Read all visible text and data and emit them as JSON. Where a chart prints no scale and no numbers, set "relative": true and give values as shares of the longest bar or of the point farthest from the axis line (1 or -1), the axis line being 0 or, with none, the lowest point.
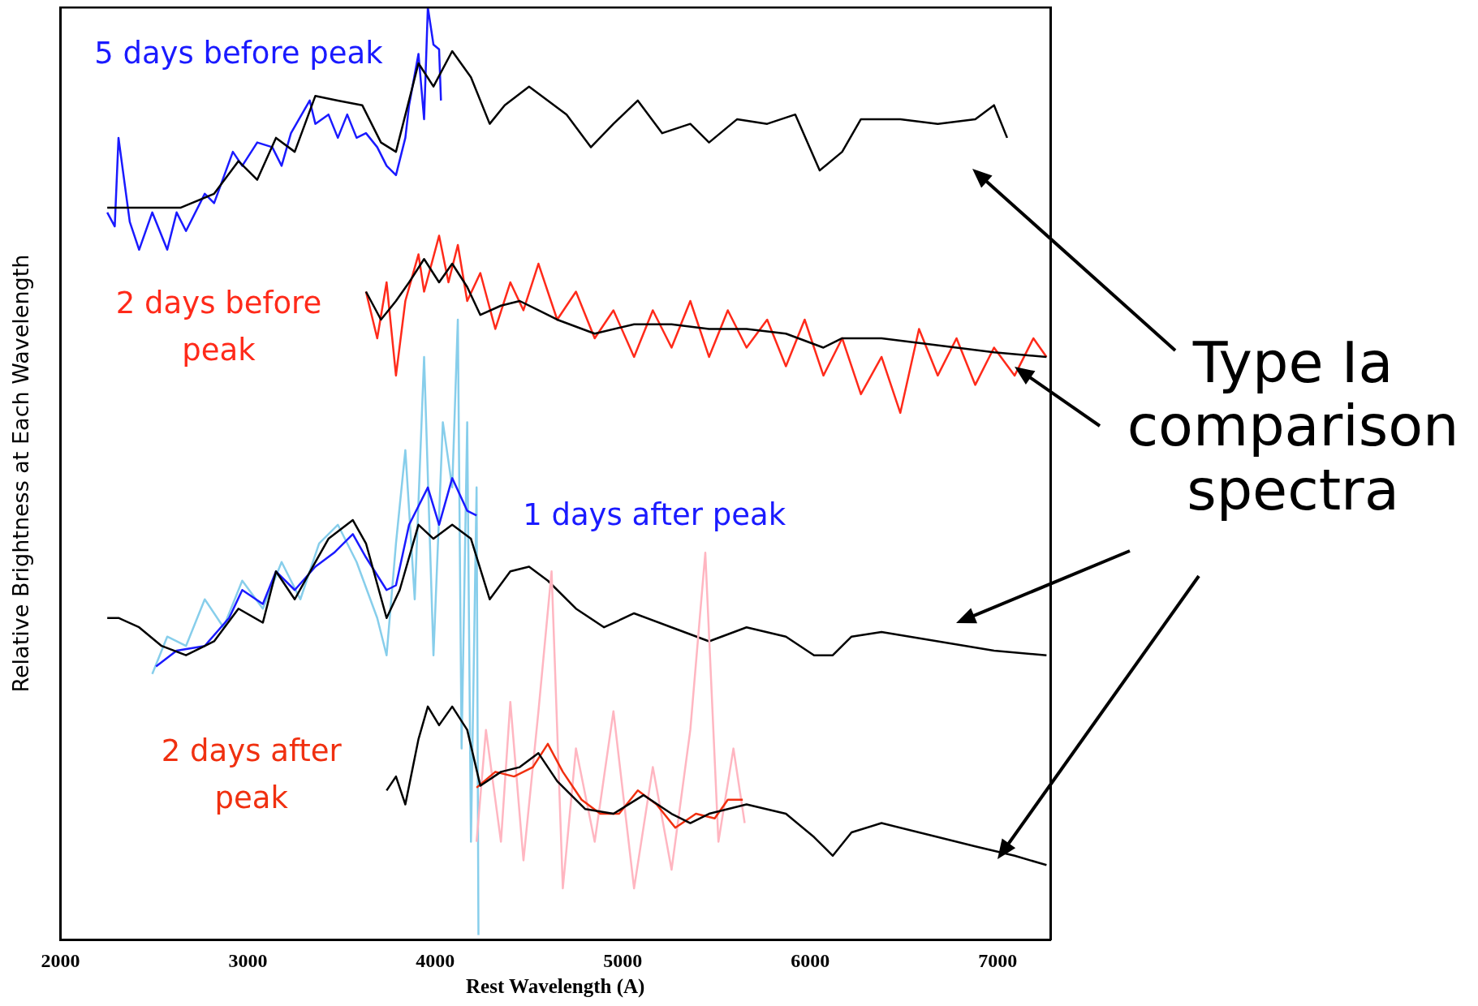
{
  "chart_data": {
    "type": "line",
    "xlabel": "Rest Wavelength (A)",
    "ylabel": "Relative Brightness at Each Wavelength",
    "relative": true,
    "xlim": [
      2000,
      7280
    ],
    "xticks": [
      2000,
      3000,
      4000,
      5000,
      6000,
      7000
    ],
    "grid": false,
    "legend": false,
    "marker": "none",
    "line_style": "solid",
    "annotations": [
      "Type Ia comparison spectra"
    ],
    "series": [
      {
        "name": "5 days before peak",
        "color": "#1a1aff",
        "x": [
          2250,
          2290,
          2310,
          2370,
          2420,
          2490,
          2570,
          2620,
          2670,
          2770,
          2820,
          2920,
          2970,
          3050,
          3130,
          3180,
          3230,
          3330,
          3360,
          3430,
          3480,
          3530,
          3580,
          3630,
          3690,
          3740,
          3790,
          3840,
          3860,
          3910,
          3940,
          3960,
          3990,
          4020,
          4030
        ],
        "values": [
          0.78,
          0.765,
          0.86,
          0.77,
          0.74,
          0.78,
          0.74,
          0.78,
          0.76,
          0.8,
          0.79,
          0.845,
          0.83,
          0.855,
          0.85,
          0.83,
          0.865,
          0.9,
          0.875,
          0.885,
          0.86,
          0.885,
          0.86,
          0.865,
          0.85,
          0.83,
          0.82,
          0.86,
          0.895,
          0.95,
          0.88,
          1.0,
          0.96,
          0.955,
          0.9
        ]
      },
      {
        "color": "#000000",
        "x": [
          2250,
          2640,
          2820,
          2950,
          3050,
          3150,
          3250,
          3360,
          3480,
          3610,
          3710,
          3790,
          3910,
          3990,
          4090,
          4190,
          4290,
          4370,
          4500,
          4600,
          4700,
          4830,
          4950,
          5080,
          5210,
          5360,
          5460,
          5610,
          5770,
          5920,
          6050,
          6170,
          6270,
          6480,
          6680,
          6880,
          6980,
          7050
        ],
        "values": [
          0.785,
          0.785,
          0.8,
          0.835,
          0.815,
          0.86,
          0.845,
          0.905,
          0.9,
          0.895,
          0.855,
          0.845,
          0.94,
          0.915,
          0.953,
          0.925,
          0.875,
          0.895,
          0.915,
          0.9,
          0.885,
          0.85,
          0.875,
          0.9,
          0.865,
          0.875,
          0.855,
          0.88,
          0.875,
          0.885,
          0.825,
          0.845,
          0.88,
          0.88,
          0.875,
          0.88,
          0.895,
          0.86
        ]
      },
      {
        "name": "2 days before peak",
        "color": "#ff2a1a",
        "x": [
          3630,
          3690,
          3740,
          3790,
          3840,
          3910,
          3940,
          4020,
          4070,
          4120,
          4170,
          4240,
          4320,
          4400,
          4470,
          4550,
          4650,
          4750,
          4850,
          4950,
          5060,
          5160,
          5260,
          5360,
          5460,
          5560,
          5660,
          5770,
          5870,
          5970,
          6070,
          6170,
          6270,
          6380,
          6480,
          6580,
          6680,
          6780,
          6880,
          6980,
          7090,
          7190,
          7260
        ],
        "values": [
          0.695,
          0.645,
          0.705,
          0.605,
          0.685,
          0.735,
          0.695,
          0.755,
          0.705,
          0.745,
          0.685,
          0.715,
          0.655,
          0.705,
          0.675,
          0.725,
          0.665,
          0.695,
          0.645,
          0.675,
          0.625,
          0.675,
          0.635,
          0.685,
          0.625,
          0.675,
          0.635,
          0.665,
          0.615,
          0.665,
          0.605,
          0.645,
          0.585,
          0.625,
          0.565,
          0.655,
          0.605,
          0.645,
          0.595,
          0.635,
          0.605,
          0.645,
          0.625
        ]
      },
      {
        "color": "#000000",
        "x": [
          3630,
          3710,
          3790,
          3860,
          3940,
          4020,
          4090,
          4170,
          4240,
          4350,
          4450,
          4550,
          4650,
          4850,
          5060,
          5260,
          5460,
          5660,
          5870,
          6070,
          6170,
          6380,
          6580,
          6780,
          6980,
          7260
        ],
        "values": [
          0.695,
          0.665,
          0.685,
          0.705,
          0.73,
          0.705,
          0.725,
          0.7,
          0.67,
          0.68,
          0.685,
          0.675,
          0.665,
          0.65,
          0.66,
          0.66,
          0.655,
          0.655,
          0.65,
          0.635,
          0.645,
          0.645,
          0.64,
          0.635,
          0.63,
          0.625
        ]
      },
      {
        "color": "#87ceeb",
        "x": [
          2490,
          2570,
          2670,
          2770,
          2870,
          2970,
          3080,
          3180,
          3280,
          3380,
          3480,
          3580,
          3690,
          3740,
          3790,
          3840,
          3890,
          3940,
          3990,
          4040,
          4090,
          4120,
          4140,
          4170,
          4190,
          4220,
          4230
        ],
        "values": [
          0.285,
          0.325,
          0.315,
          0.365,
          0.335,
          0.385,
          0.355,
          0.405,
          0.365,
          0.425,
          0.445,
          0.405,
          0.345,
          0.305,
          0.425,
          0.525,
          0.365,
          0.625,
          0.305,
          0.555,
          0.485,
          0.665,
          0.205,
          0.555,
          0.105,
          0.485,
          0.005
        ]
      },
      {
        "name": "1 days after peak",
        "color": "#1a1aff",
        "x": [
          2510,
          2620,
          2770,
          2900,
          2970,
          3080,
          3150,
          3250,
          3360,
          3460,
          3560,
          3630,
          3740,
          3790,
          3860,
          3960,
          4020,
          4090,
          4170,
          4220
        ],
        "values": [
          0.293,
          0.31,
          0.315,
          0.345,
          0.375,
          0.36,
          0.395,
          0.375,
          0.4,
          0.415,
          0.435,
          0.41,
          0.375,
          0.38,
          0.445,
          0.485,
          0.445,
          0.495,
          0.46,
          0.455
        ]
      },
      {
        "color": "#000000",
        "x": [
          2250,
          2310,
          2420,
          2540,
          2670,
          2820,
          2950,
          3080,
          3150,
          3250,
          3360,
          3430,
          3560,
          3630,
          3740,
          3810,
          3910,
          3990,
          4090,
          4190,
          4290,
          4400,
          4500,
          4600,
          4750,
          4900,
          5060,
          5260,
          5460,
          5660,
          5870,
          6020,
          6120,
          6220,
          6380,
          6680,
          6980,
          7260
        ],
        "values": [
          0.345,
          0.345,
          0.335,
          0.315,
          0.305,
          0.32,
          0.355,
          0.34,
          0.395,
          0.365,
          0.405,
          0.43,
          0.45,
          0.425,
          0.345,
          0.375,
          0.445,
          0.43,
          0.445,
          0.43,
          0.365,
          0.395,
          0.4,
          0.385,
          0.355,
          0.335,
          0.35,
          0.335,
          0.32,
          0.335,
          0.325,
          0.305,
          0.305,
          0.325,
          0.33,
          0.32,
          0.31,
          0.305
        ]
      },
      {
        "color": "#ffb6c1",
        "x": [
          4220,
          4270,
          4350,
          4400,
          4470,
          4550,
          4620,
          4680,
          4750,
          4850,
          4950,
          5060,
          5160,
          5260,
          5360,
          5440,
          5510,
          5590,
          5650
        ],
        "values": [
          0.105,
          0.225,
          0.105,
          0.255,
          0.085,
          0.245,
          0.395,
          0.055,
          0.205,
          0.105,
          0.245,
          0.055,
          0.185,
          0.075,
          0.225,
          0.415,
          0.105,
          0.205,
          0.125
        ]
      },
      {
        "name": "2 days after peak",
        "color": "#f03010",
        "x": [
          4220,
          4320,
          4420,
          4520,
          4600,
          4680,
          4780,
          4880,
          4980,
          5080,
          5180,
          5280,
          5390,
          5490,
          5560,
          5640
        ],
        "values": [
          0.163,
          0.18,
          0.175,
          0.185,
          0.21,
          0.18,
          0.15,
          0.135,
          0.135,
          0.16,
          0.145,
          0.12,
          0.135,
          0.13,
          0.15,
          0.15
        ]
      },
      {
        "color": "#000000",
        "x": [
          3740,
          3790,
          3840,
          3910,
          3960,
          4020,
          4090,
          4170,
          4240,
          4350,
          4450,
          4550,
          4650,
          4800,
          4950,
          5110,
          5260,
          5360,
          5460,
          5660,
          5870,
          6020,
          6120,
          6220,
          6380,
          6680,
          6880,
          7090,
          7260
        ],
        "values": [
          0.16,
          0.175,
          0.145,
          0.215,
          0.25,
          0.23,
          0.25,
          0.225,
          0.165,
          0.18,
          0.185,
          0.2,
          0.17,
          0.14,
          0.135,
          0.155,
          0.135,
          0.125,
          0.135,
          0.145,
          0.135,
          0.11,
          0.09,
          0.115,
          0.125,
          0.11,
          0.1,
          0.09,
          0.08
        ]
      }
    ]
  }
}
